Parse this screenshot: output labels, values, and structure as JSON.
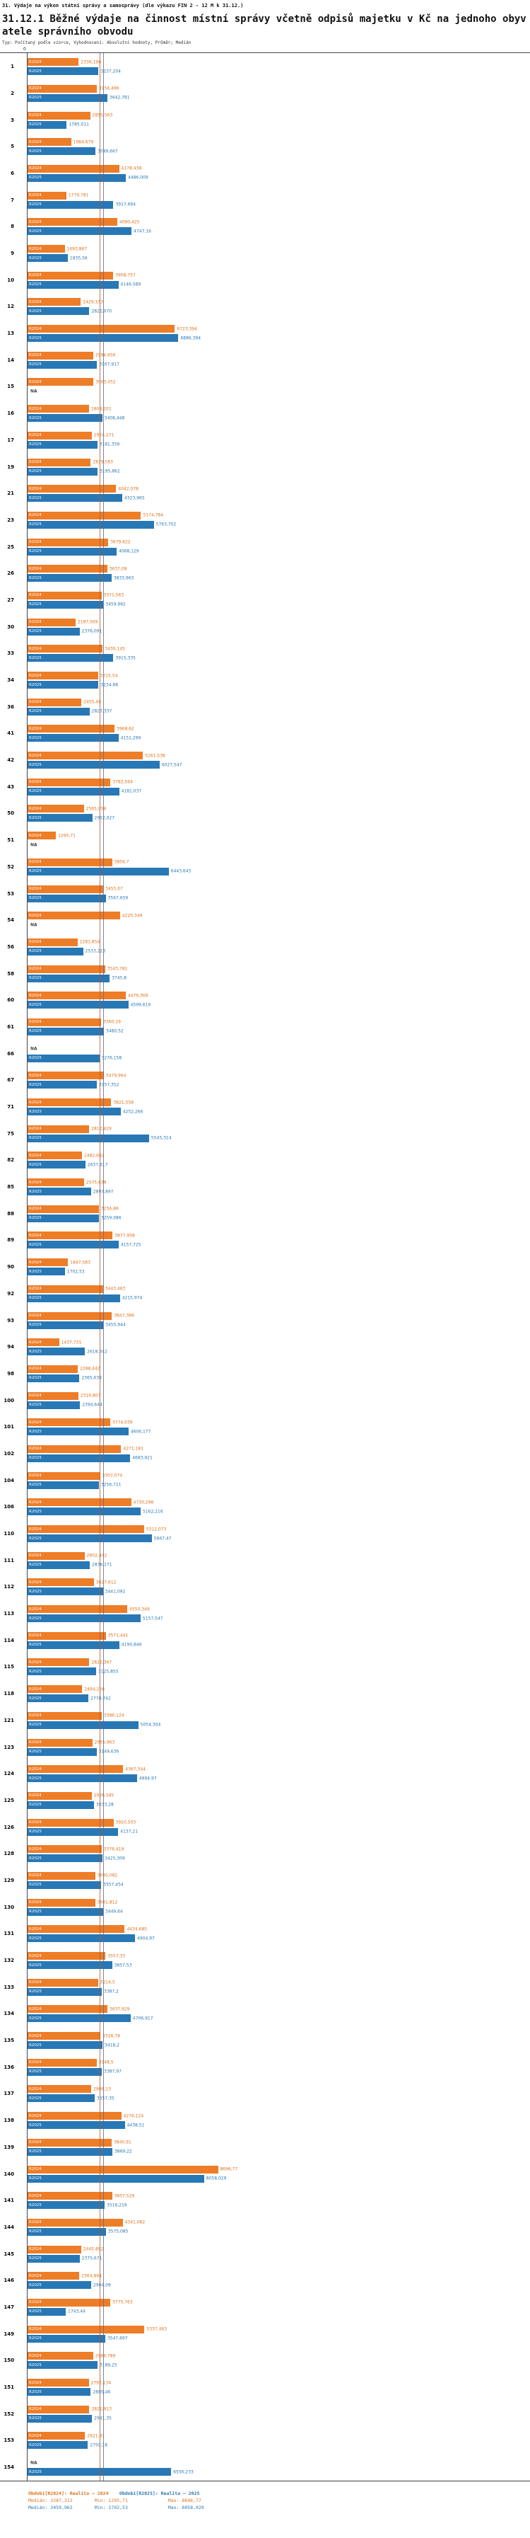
{
  "header": {
    "title": "31. Výdaje na výkon státní správy a samosprávy (dle výkazu FIN 2 - 12 M k 31.12.)",
    "subtitle": "31.12.1 Běžné výdaje na činnost místní správy včetně odpisů majetku v Kč na jednoho obyvatele správního obvodu",
    "meta": "Typ: Počítaný podle vzorce, Vyhodnocení: Absolutní hodnoty, Průměr; Medián"
  },
  "chart_data": {
    "type": "bar",
    "orientation": "horizontal",
    "x_origin_label": "0",
    "na_text": "NA",
    "series_meta": [
      {
        "key": "r2024",
        "name": "R2024",
        "color": "#ee7d28"
      },
      {
        "key": "r2025",
        "name": "R2025",
        "color": "#2878b6"
      }
    ],
    "median_lines": [
      {
        "series": "R2024",
        "value": 3287.212
      },
      {
        "series": "R2025",
        "value": 3459.962
      }
    ],
    "rows": [
      {
        "id": "1",
        "r2024": "2336,196",
        "r2025": "3237,204"
      },
      {
        "id": "2",
        "r2024": "3156,496",
        "r2025": "3642,781"
      },
      {
        "id": "3",
        "r2024": "2855,563",
        "r2025": "1785,011"
      },
      {
        "id": "5",
        "r2024": "1984,679",
        "r2025": "3099,667"
      },
      {
        "id": "6",
        "r2024": "4178,438",
        "r2025": "4486,009"
      },
      {
        "id": "7",
        "r2024": "1770,781",
        "r2025": "3917,694"
      },
      {
        "id": "8",
        "r2024": "4090,425",
        "r2025": "4747,16"
      },
      {
        "id": "9",
        "r2024": "1693,867",
        "r2025": "1835,56"
      },
      {
        "id": "10",
        "r2024": "3908,757",
        "r2025": "4146,589"
      },
      {
        "id": "12",
        "r2024": "2429,103",
        "r2025": "2822,070"
      },
      {
        "id": "13",
        "r2024": "6723,394",
        "r2025": "6886,394"
      },
      {
        "id": "14",
        "r2024": "2994,656",
        "r2025": "3167,917"
      },
      {
        "id": "15",
        "r2024": "3003,052",
        "r2025": "NA"
      },
      {
        "id": "16",
        "r2024": "2808,201",
        "r2025": "3408,448"
      },
      {
        "id": "17",
        "r2024": "2924,271",
        "r2025": "3181,359"
      },
      {
        "id": "19",
        "r2024": "2879,583",
        "r2025": "3195,862"
      },
      {
        "id": "21",
        "r2024": "4042,078",
        "r2025": "4323,965"
      },
      {
        "id": "23",
        "r2024": "5174,784",
        "r2025": "5763,702"
      },
      {
        "id": "25",
        "r2024": "3679,622",
        "r2025": "4068,129"
      },
      {
        "id": "26",
        "r2024": "3637,08",
        "r2025": "3833,963"
      },
      {
        "id": "27",
        "r2024": "3371,563",
        "r2025": "3459,962"
      },
      {
        "id": "30",
        "r2024": "2187,569",
        "r2025": "2376,091"
      },
      {
        "id": "33",
        "r2024": "3430,145",
        "r2025": "3915,335"
      },
      {
        "id": "34",
        "r2024": "3215,54",
        "r2025": "3234,68"
      },
      {
        "id": "36",
        "r2024": "2455,49",
        "r2025": "2827,337"
      },
      {
        "id": "41",
        "r2024": "3968,62",
        "r2025": "4151,299"
      },
      {
        "id": "42",
        "r2024": "5261,538",
        "r2025": "6027,547"
      },
      {
        "id": "43",
        "r2024": "3782,564",
        "r2025": "4181,037"
      },
      {
        "id": "50",
        "r2024": "2565,059",
        "r2025": "2952,027"
      },
      {
        "id": "51",
        "r2024": "1295,71",
        "r2025": "NA"
      },
      {
        "id": "52",
        "r2024": "3856,7",
        "r2025": "6443,643"
      },
      {
        "id": "53",
        "r2024": "3455,07",
        "r2025": "3567,659"
      },
      {
        "id": "54",
        "r2024": "4220,349",
        "r2025": "NA"
      },
      {
        "id": "56",
        "r2024": "2281,854",
        "r2025": "2533,223"
      },
      {
        "id": "58",
        "r2024": "3543,781",
        "r2025": "3745,8"
      },
      {
        "id": "60",
        "r2024": "4479,369",
        "r2025": "4599,619"
      },
      {
        "id": "61",
        "r2024": "3360,19",
        "r2025": "3480,52"
      },
      {
        "id": "66",
        "r2024": "NA",
        "r2025": "3276,158"
      },
      {
        "id": "67",
        "r2024": "3479,964",
        "r2025": "3157,352"
      },
      {
        "id": "71",
        "r2024": "3821,558",
        "r2025": "4252,266"
      },
      {
        "id": "75",
        "r2024": "2812,429",
        "r2025": "5545,314"
      },
      {
        "id": "82",
        "r2024": "2482,682",
        "r2025": "2637,617"
      },
      {
        "id": "85",
        "r2024": "2575,639",
        "r2025": "2897,897"
      },
      {
        "id": "88",
        "r2024": "3256,86",
        "r2025": "3259,086"
      },
      {
        "id": "89",
        "r2024": "3877,958",
        "r2025": "4157,725"
      },
      {
        "id": "90",
        "r2024": "1847,583",
        "r2025": "1702,53"
      },
      {
        "id": "92",
        "r2024": "3443,463",
        "r2025": "4215,974"
      },
      {
        "id": "93",
        "r2024": "3847,386",
        "r2025": "3455,944"
      },
      {
        "id": "94",
        "r2024": "1437,731",
        "r2025": "2618,342"
      },
      {
        "id": "98",
        "r2024": "2288,442",
        "r2025": "2365,638"
      },
      {
        "id": "100",
        "r2024": "2316,807",
        "r2025": "2394,644"
      },
      {
        "id": "101",
        "r2024": "3774,039",
        "r2025": "4606,177"
      },
      {
        "id": "102",
        "r2024": "4271,181",
        "r2025": "4683,921"
      },
      {
        "id": "104",
        "r2024": "3307,074",
        "r2025": "3256,721"
      },
      {
        "id": "106",
        "r2024": "4730,298",
        "r2025": "5162,216"
      },
      {
        "id": "110",
        "r2024": "5312,073",
        "r2025": "5667,47"
      },
      {
        "id": "111",
        "r2024": "2602,442",
        "r2025": "2836,171"
      },
      {
        "id": "112",
        "r2024": "3027,612",
        "r2025": "3441,092"
      },
      {
        "id": "113",
        "r2024": "4550,349",
        "r2025": "5157,547"
      },
      {
        "id": "114",
        "r2024": "3571,441",
        "r2025": "4190,846"
      },
      {
        "id": "115",
        "r2024": "2822,367",
        "r2025": "3125,855"
      },
      {
        "id": "118",
        "r2024": "2494,256",
        "r2025": "2778,742"
      },
      {
        "id": "121",
        "r2024": "3386,124",
        "r2025": "5054,304"
      },
      {
        "id": "123",
        "r2024": "2955,963",
        "r2025": "3149,636"
      },
      {
        "id": "124",
        "r2024": "4367,344",
        "r2025": "4994,97"
      },
      {
        "id": "125",
        "r2024": "2926,585",
        "r2025": "3033,28"
      },
      {
        "id": "126",
        "r2024": "3920,503",
        "r2025": "4137,21"
      },
      {
        "id": "128",
        "r2024": "3376,419",
        "r2025": "3425,309"
      },
      {
        "id": "129",
        "r2024": "3085,082",
        "r2025": "3357,454"
      },
      {
        "id": "130",
        "r2024": "3081,812",
        "r2025": "3449,64"
      },
      {
        "id": "131",
        "r2024": "4434,685",
        "r2025": "4904,97"
      },
      {
        "id": "132",
        "r2024": "3557,33",
        "r2025": "3857,53"
      },
      {
        "id": "133",
        "r2024": "3214,5",
        "r2025": "3387,2"
      },
      {
        "id": "134",
        "r2024": "3637,929",
        "r2025": "4706,917"
      },
      {
        "id": "135",
        "r2024": "3326,78",
        "r2025": "3418,2"
      },
      {
        "id": "136",
        "r2024": "3148,5",
        "r2025": "3387,97"
      },
      {
        "id": "137",
        "r2024": "2906,13",
        "r2025": "3057,35"
      },
      {
        "id": "138",
        "r2024": "4276,124",
        "r2025": "4438,51"
      },
      {
        "id": "139",
        "r2024": "3840,91",
        "r2025": "3869,22"
      },
      {
        "id": "140",
        "r2024": "8696,77",
        "r2025": "8058,029"
      },
      {
        "id": "141",
        "r2024": "3857,529",
        "r2025": "3516,219"
      },
      {
        "id": "144",
        "r2024": "4341,082",
        "r2025": "3575,085"
      },
      {
        "id": "145",
        "r2024": "2445,892",
        "r2025": "2375,671"
      },
      {
        "id": "146",
        "r2024": "2364,894",
        "r2025": "2904,09"
      },
      {
        "id": "147",
        "r2024": "3775,763",
        "r2025": "1743,44"
      },
      {
        "id": "149",
        "r2024": "5337,463",
        "r2025": "3547,697"
      },
      {
        "id": "150",
        "r2024": "2989,789",
        "r2025": "3189,25"
      },
      {
        "id": "151",
        "r2024": "2792,134",
        "r2025": "2885,46"
      },
      {
        "id": "152",
        "r2024": "2821,913",
        "r2025": "2941,35"
      },
      {
        "id": "153",
        "r2024": "2621,91",
        "r2025": "2750,18"
      },
      {
        "id": "154",
        "r2024": "NA",
        "r2025": "6556,233"
      }
    ]
  },
  "legend": {
    "r2024": {
      "label": "Období[R2024]: Realita — 2024",
      "median": "Medián: 3287,212",
      "min": "Min: 1295,71",
      "max": "Max: 8696,77"
    },
    "r2025": {
      "label": "Období[R2025]: Realita — 2025",
      "median": "Medián: 3459,962",
      "min": "Min: 1702,53",
      "max": "Max: 8058,029"
    }
  }
}
